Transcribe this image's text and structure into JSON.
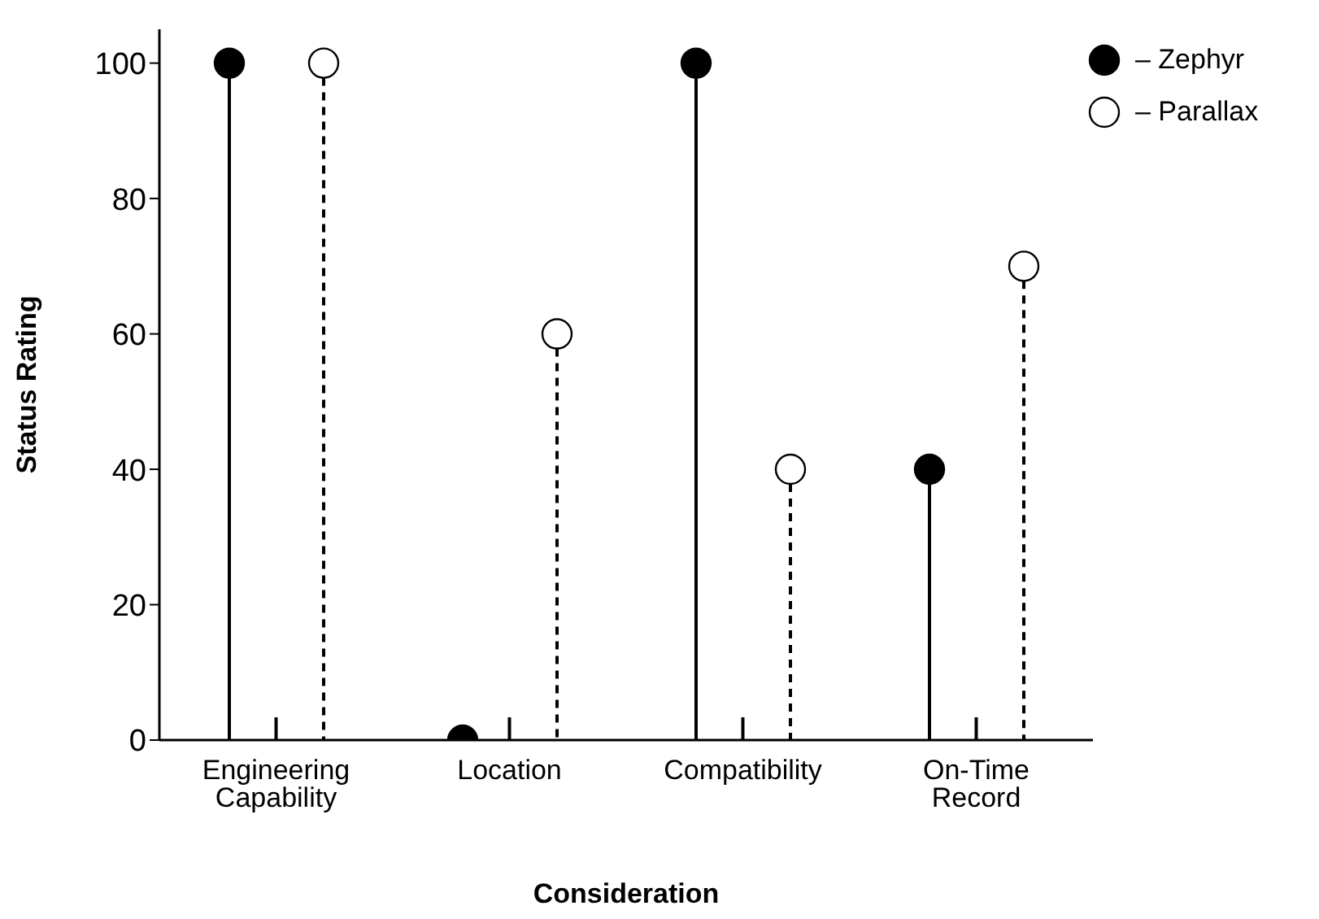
{
  "chart_data": {
    "type": "lollipop",
    "xlabel": "Consideration",
    "ylabel": "Status Rating",
    "categories": [
      "Engineering Capability",
      "Location",
      "Compatibility",
      "On-Time Record"
    ],
    "series": [
      {
        "name": "– Zephyr",
        "color": "#000000",
        "line_style": "solid",
        "values": [
          100,
          0,
          100,
          40
        ]
      },
      {
        "name": "– Parallax",
        "color": "#ffffff",
        "line_style": "dashed",
        "values": [
          100,
          60,
          40,
          70
        ]
      }
    ],
    "ylim": [
      0,
      105
    ],
    "yticks": [
      0,
      20,
      40,
      60,
      80,
      100
    ],
    "marker": "circle",
    "grid": false,
    "legend": "top right"
  }
}
